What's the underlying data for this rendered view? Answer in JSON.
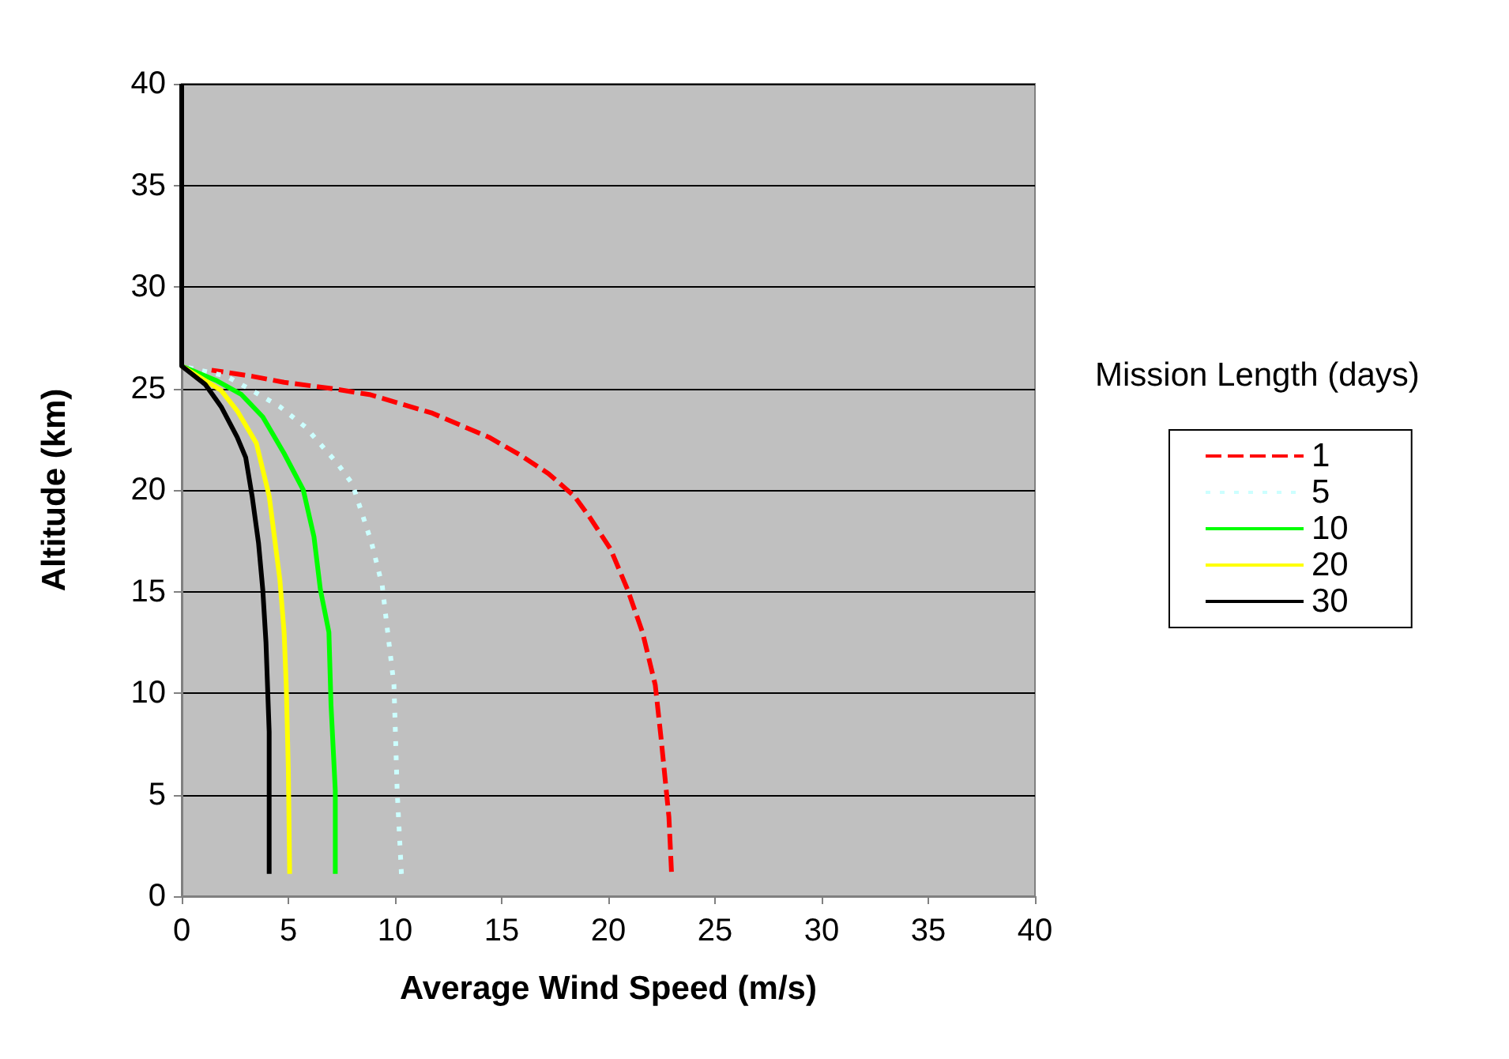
{
  "chart_data": {
    "type": "line",
    "xlabel": "Average Wind Speed (m/s)",
    "ylabel": "Altitude (km)",
    "legend_title": "Mission Length (days)",
    "xlim": [
      0,
      40
    ],
    "xticks": [
      0,
      5,
      10,
      15,
      20,
      25,
      30,
      35,
      40
    ],
    "ylim": [
      0,
      40
    ],
    "yticks": [
      0,
      5,
      10,
      15,
      20,
      25,
      30,
      35,
      40
    ],
    "grid": "y",
    "legend": "right",
    "marker": "none",
    "series": [
      {
        "name": "1",
        "color": "#ff0000",
        "line_style": "dashed",
        "x": [
          22.96,
          22.84,
          22.47,
          22.2,
          21.6,
          20.9,
          20.1,
          19.1,
          18.4,
          17.2,
          15.9,
          14.4,
          11.7,
          8.8,
          7.0,
          4.8,
          3.3,
          1.4
        ],
        "values": [
          1.2,
          3.9,
          7.8,
          10.4,
          13.0,
          15.1,
          17.1,
          18.7,
          19.7,
          20.8,
          21.7,
          22.6,
          23.8,
          24.7,
          25.0,
          25.3,
          25.6,
          25.9
        ]
      },
      {
        "name": "5",
        "color": "#ccffff",
        "line_style": "dotted",
        "x": [
          10.3,
          10.1,
          9.95,
          9.6,
          9.4,
          8.9,
          8.0,
          7.3,
          5.8,
          4.6,
          3.3,
          2.1,
          0
        ],
        "values": [
          1.1,
          5.2,
          10.4,
          13.5,
          15.3,
          17.4,
          20.3,
          21.3,
          23.1,
          24.1,
          24.9,
          25.6,
          26.1
        ]
      },
      {
        "name": "10",
        "color": "#00ff00",
        "line_style": "solid",
        "x": [
          7.2,
          7.2,
          7.0,
          6.9,
          6.5,
          6.2,
          5.7,
          4.8,
          3.8,
          2.8,
          1.6,
          0
        ],
        "values": [
          1.1,
          5.2,
          9.4,
          13.0,
          15.1,
          17.7,
          20.0,
          21.8,
          23.6,
          24.7,
          25.4,
          26.1
        ]
      },
      {
        "name": "20",
        "color": "#ffff00",
        "line_style": "solid",
        "x": [
          5.06,
          5.0,
          4.9,
          4.8,
          4.6,
          4.1,
          3.5,
          2.6,
          1.85,
          0
        ],
        "values": [
          1.1,
          6.2,
          10.4,
          13.0,
          15.6,
          19.7,
          22.3,
          23.9,
          24.9,
          26.1
        ]
      },
      {
        "name": "30",
        "color": "#000000",
        "line_style": "solid",
        "x": [
          4.1,
          4.1,
          3.95,
          3.8,
          3.6,
          3.3,
          3.0,
          2.6,
          1.85,
          1.1,
          0,
          0
        ],
        "values": [
          1.1,
          8.1,
          12.5,
          15.1,
          17.4,
          19.7,
          21.6,
          22.6,
          24.1,
          25.2,
          26.1,
          40
        ]
      }
    ]
  }
}
